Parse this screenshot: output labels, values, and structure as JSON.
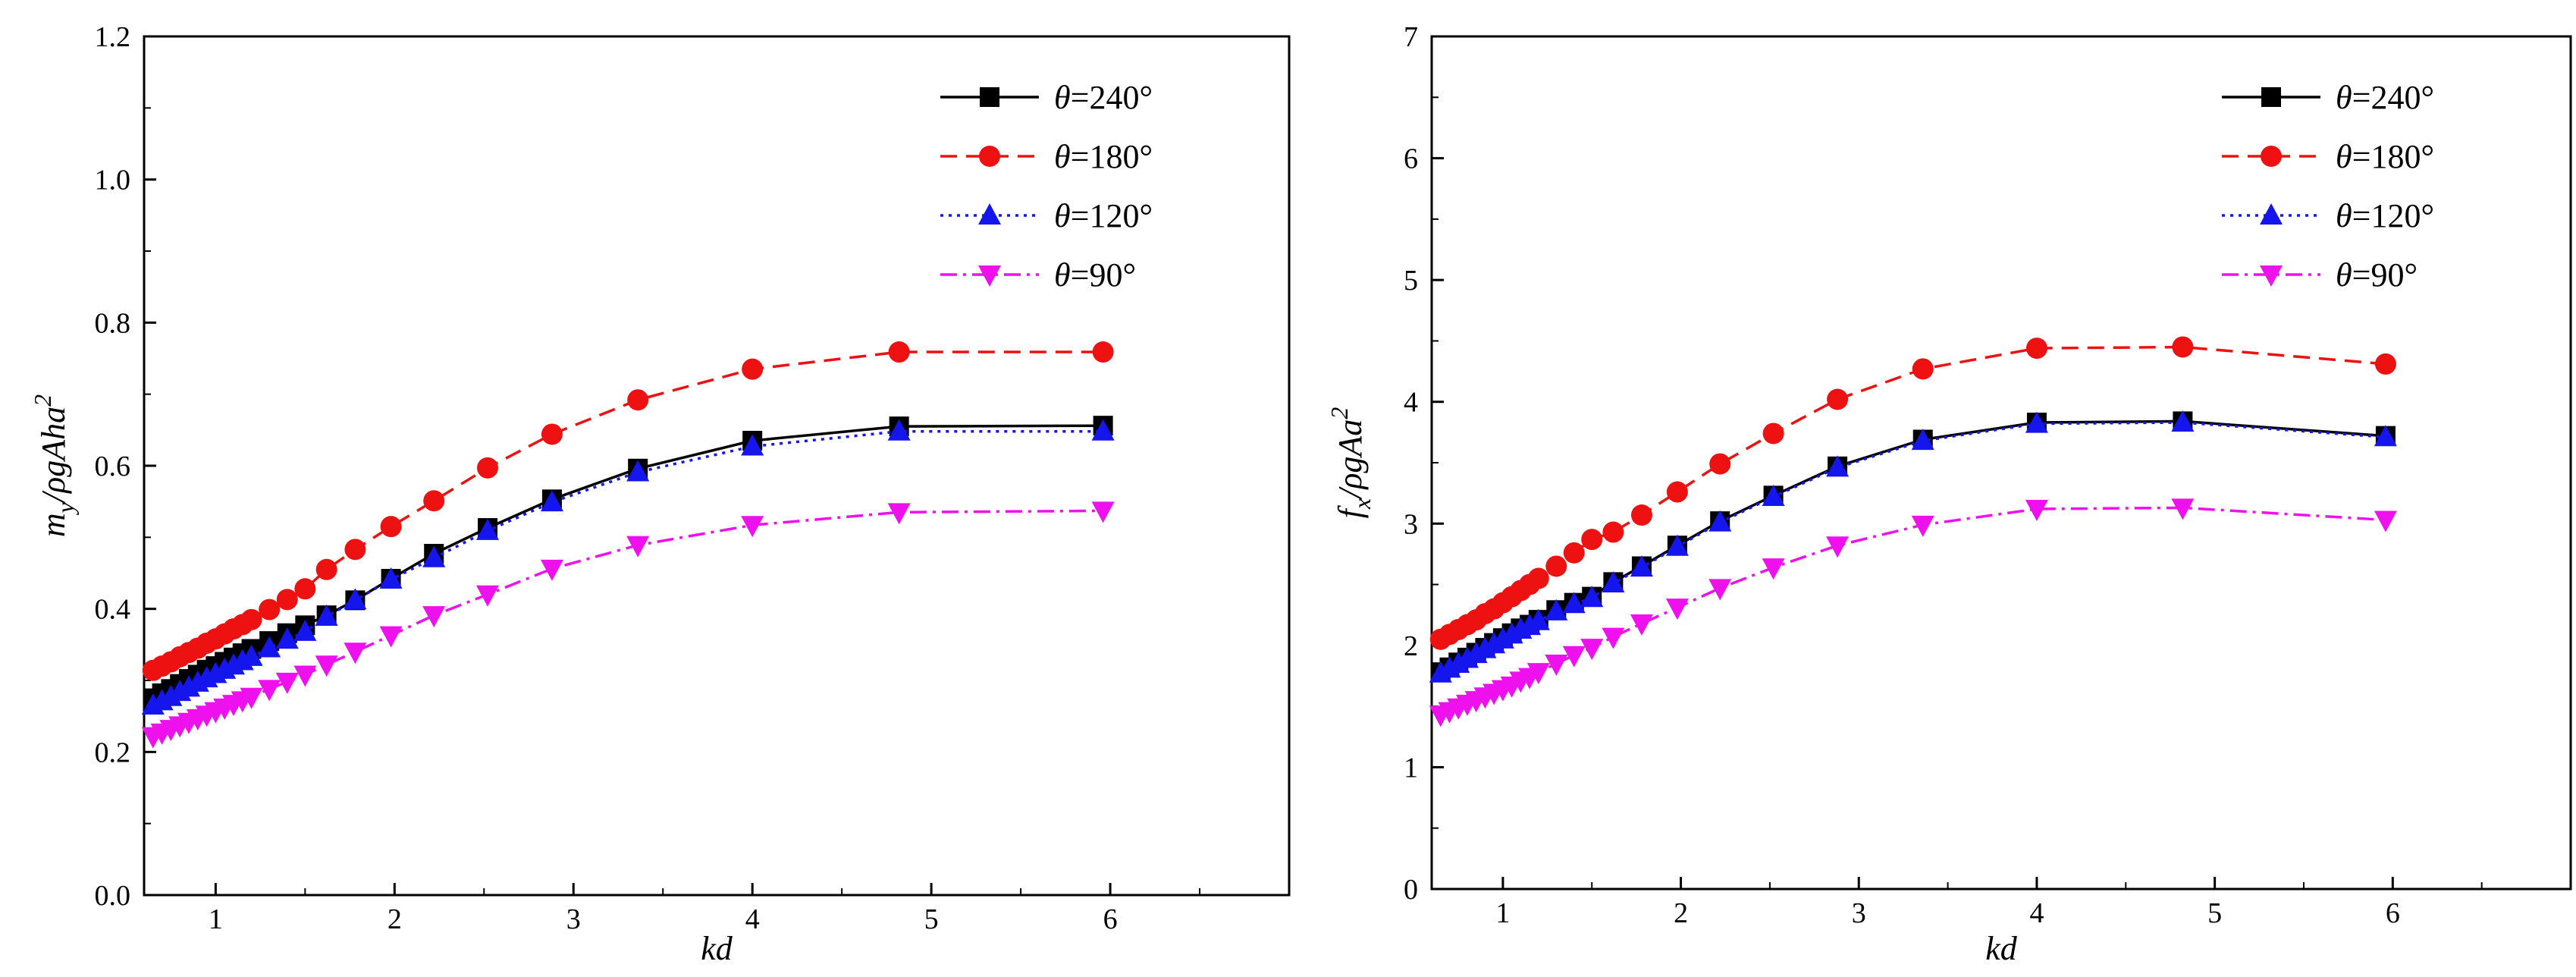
{
  "chart_data": [
    {
      "type": "line",
      "xlabel": "kd",
      "ylabel": "m_y/ρgAha^2",
      "ylabel_parts": [
        "m",
        "y",
        "/ρgAha",
        "2"
      ],
      "xlim": [
        0.6,
        7
      ],
      "ylim": [
        0,
        1.2
      ],
      "xticks": [
        1,
        2,
        3,
        4,
        5,
        6
      ],
      "yticks": [
        0.0,
        0.2,
        0.4,
        0.6,
        0.8,
        1.0,
        1.2
      ],
      "ytick_labels": [
        "0.0",
        "0.2",
        "0.4",
        "0.6",
        "0.8",
        "1.0",
        "1.2"
      ],
      "legend_position": "top-right",
      "x": [
        0.65,
        0.7,
        0.75,
        0.8,
        0.85,
        0.9,
        0.95,
        1.0,
        1.05,
        1.1,
        1.15,
        1.2,
        1.3,
        1.4,
        1.5,
        1.62,
        1.78,
        1.98,
        2.22,
        2.52,
        2.88,
        3.36,
        4.0,
        4.82,
        5.96
      ],
      "series": [
        {
          "name": "θ=240°",
          "theta": "240",
          "color": "#000000",
          "dash": "",
          "marker": "square",
          "values": [
            0.275,
            0.282,
            0.288,
            0.295,
            0.302,
            0.308,
            0.315,
            0.32,
            0.326,
            0.332,
            0.338,
            0.344,
            0.355,
            0.366,
            0.377,
            0.391,
            0.412,
            0.442,
            0.477,
            0.513,
            0.553,
            0.596,
            0.635,
            0.655,
            0.656
          ]
        },
        {
          "name": "θ=180°",
          "theta": "180",
          "color": "#ee1111",
          "dash": "22,12",
          "marker": "circle",
          "values": [
            0.314,
            0.32,
            0.326,
            0.333,
            0.339,
            0.345,
            0.352,
            0.358,
            0.365,
            0.372,
            0.378,
            0.385,
            0.399,
            0.413,
            0.428,
            0.455,
            0.483,
            0.515,
            0.551,
            0.597,
            0.644,
            0.692,
            0.735,
            0.759,
            0.759
          ]
        },
        {
          "name": "θ=120°",
          "theta": "120",
          "color": "#1515ee",
          "dash": "4,7",
          "marker": "triangle-up",
          "values": [
            0.265,
            0.271,
            0.277,
            0.284,
            0.29,
            0.297,
            0.303,
            0.309,
            0.315,
            0.321,
            0.327,
            0.333,
            0.345,
            0.357,
            0.368,
            0.389,
            0.412,
            0.441,
            0.471,
            0.509,
            0.549,
            0.591,
            0.627,
            0.648,
            0.648
          ]
        },
        {
          "name": "θ=90°",
          "theta": "90",
          "color": "#ee11ee",
          "dash": "22,8,4,8",
          "marker": "triangle-down",
          "values": [
            0.222,
            0.227,
            0.232,
            0.237,
            0.242,
            0.247,
            0.252,
            0.257,
            0.262,
            0.267,
            0.272,
            0.277,
            0.288,
            0.298,
            0.308,
            0.322,
            0.34,
            0.363,
            0.391,
            0.42,
            0.456,
            0.489,
            0.517,
            0.535,
            0.537
          ]
        }
      ]
    },
    {
      "type": "line",
      "xlabel": "kd",
      "ylabel": "f_x/ρgAa^2",
      "ylabel_parts": [
        "f",
        "x",
        "/ρgAa",
        "2"
      ],
      "xlim": [
        0.6,
        7
      ],
      "ylim": [
        0,
        7
      ],
      "xticks": [
        1,
        2,
        3,
        4,
        5,
        6
      ],
      "yticks": [
        0,
        1,
        2,
        3,
        4,
        5,
        6,
        7
      ],
      "ytick_labels": [
        "0",
        "1",
        "2",
        "3",
        "4",
        "5",
        "6",
        "7"
      ],
      "legend_position": "top-right",
      "x": [
        0.65,
        0.7,
        0.75,
        0.8,
        0.85,
        0.9,
        0.95,
        1.0,
        1.05,
        1.1,
        1.15,
        1.2,
        1.3,
        1.4,
        1.5,
        1.62,
        1.78,
        1.98,
        2.22,
        2.52,
        2.88,
        3.36,
        4.0,
        4.82,
        5.96
      ],
      "series": [
        {
          "name": "θ=240°",
          "theta": "240",
          "color": "#000000",
          "dash": "",
          "marker": "square",
          "values": [
            1.78,
            1.82,
            1.86,
            1.9,
            1.94,
            1.98,
            2.02,
            2.06,
            2.1,
            2.14,
            2.17,
            2.21,
            2.29,
            2.35,
            2.4,
            2.52,
            2.65,
            2.82,
            3.02,
            3.23,
            3.47,
            3.69,
            3.83,
            3.84,
            3.72
          ]
        },
        {
          "name": "θ=180°",
          "theta": "180",
          "color": "#ee1111",
          "dash": "22,12",
          "marker": "circle",
          "values": [
            2.05,
            2.09,
            2.13,
            2.17,
            2.21,
            2.26,
            2.3,
            2.35,
            2.4,
            2.45,
            2.5,
            2.55,
            2.65,
            2.76,
            2.87,
            2.93,
            3.07,
            3.26,
            3.49,
            3.74,
            4.02,
            4.27,
            4.44,
            4.45,
            4.31
          ]
        },
        {
          "name": "θ=120°",
          "theta": "120",
          "color": "#1515ee",
          "dash": "4,7",
          "marker": "triangle-up",
          "values": [
            1.77,
            1.81,
            1.85,
            1.89,
            1.93,
            1.97,
            2.01,
            2.05,
            2.09,
            2.13,
            2.16,
            2.2,
            2.28,
            2.34,
            2.39,
            2.51,
            2.64,
            2.81,
            3.01,
            3.22,
            3.46,
            3.68,
            3.82,
            3.83,
            3.71
          ]
        },
        {
          "name": "θ=90°",
          "theta": "90",
          "color": "#ee11ee",
          "dash": "22,8,4,8",
          "marker": "triangle-down",
          "values": [
            1.43,
            1.46,
            1.49,
            1.52,
            1.55,
            1.58,
            1.61,
            1.64,
            1.67,
            1.71,
            1.74,
            1.78,
            1.85,
            1.92,
            1.98,
            2.07,
            2.18,
            2.31,
            2.47,
            2.64,
            2.82,
            2.99,
            3.12,
            3.13,
            3.03
          ]
        }
      ]
    }
  ]
}
